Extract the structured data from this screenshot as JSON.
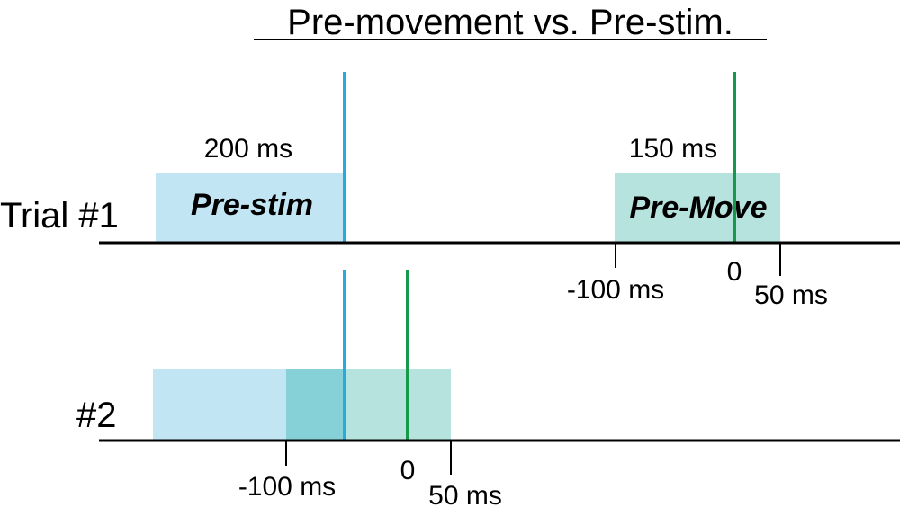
{
  "title": "Pre-movement vs. Pre-stim.",
  "colors": {
    "prestim_band": "#c1e5f3",
    "premove_band": "#b7e3de",
    "overlap_band": "#86d0d8",
    "stim_line": "#29a9dc",
    "move_line": "#16994a",
    "prestim_text": "#1a78be",
    "premove_text": "#1ca54f",
    "axis": "#000000"
  },
  "trial1": {
    "label": "Trial #1",
    "prestim": {
      "duration_label": "200 ms",
      "band_label": "Pre-stim"
    },
    "premove": {
      "duration_label": "150 ms",
      "band_label": "Pre-Move",
      "ticks": {
        "minus100": "-100 ms",
        "zero": "0",
        "plus50": "50 ms"
      }
    }
  },
  "trial2": {
    "label": "#2",
    "ticks": {
      "minus100": "-100 ms",
      "zero": "0",
      "plus50": "50 ms"
    }
  }
}
